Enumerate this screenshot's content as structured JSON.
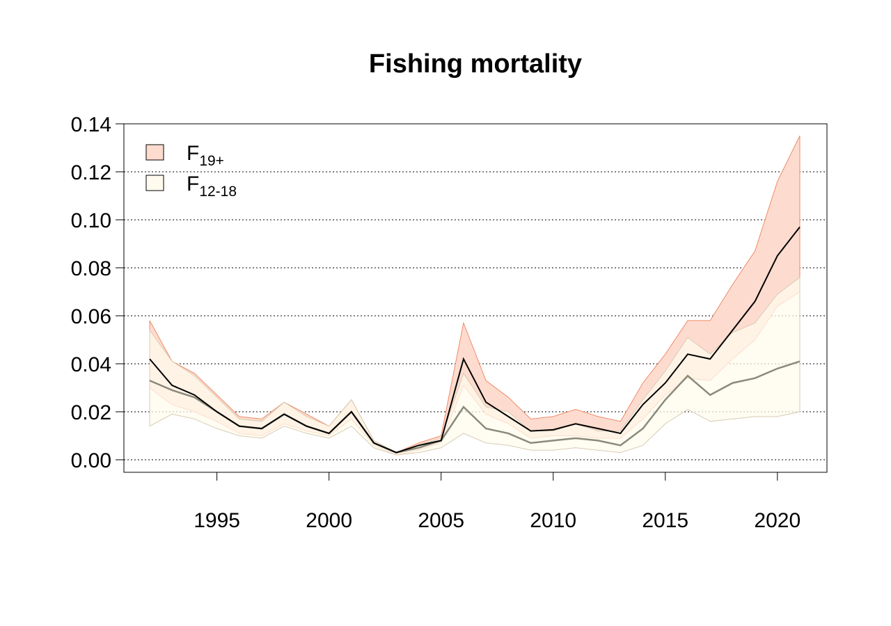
{
  "chart_data": {
    "type": "area",
    "title": "Fishing mortality",
    "xlabel": "",
    "ylabel": "",
    "xlim": [
      1992,
      2021
    ],
    "ylim": [
      0,
      0.14
    ],
    "grid": "horizontal dotted",
    "legend_position": "top-left",
    "x_ticks": [
      "1995",
      "2000",
      "2005",
      "2010",
      "2015",
      "2020"
    ],
    "y_ticks": [
      "0.00",
      "0.02",
      "0.04",
      "0.06",
      "0.08",
      "0.10",
      "0.12",
      "0.14"
    ],
    "x": [
      1992,
      1993,
      1994,
      1995,
      1996,
      1997,
      1998,
      1999,
      2000,
      2001,
      2002,
      2003,
      2004,
      2005,
      2006,
      2007,
      2008,
      2009,
      2010,
      2011,
      2012,
      2013,
      2014,
      2015,
      2016,
      2017,
      2018,
      2019,
      2020,
      2021
    ],
    "series": [
      {
        "name": "F",
        "subscript": "19+",
        "fill": "#fddccf",
        "border": "#f08a66",
        "line_color": "#000000",
        "values": [
          0.042,
          0.031,
          0.027,
          0.02,
          0.014,
          0.013,
          0.019,
          0.014,
          0.011,
          0.02,
          0.007,
          0.003,
          0.006,
          0.008,
          0.042,
          0.024,
          0.018,
          0.012,
          0.0125,
          0.015,
          0.013,
          0.011,
          0.023,
          0.032,
          0.044,
          0.042,
          0.054,
          0.066,
          0.085,
          0.097
        ],
        "upper": [
          0.058,
          0.041,
          0.036,
          0.027,
          0.018,
          0.017,
          0.024,
          0.019,
          0.014,
          0.025,
          0.008,
          0.003,
          0.007,
          0.01,
          0.057,
          0.033,
          0.026,
          0.017,
          0.018,
          0.021,
          0.018,
          0.016,
          0.032,
          0.044,
          0.058,
          0.058,
          0.073,
          0.087,
          0.116,
          0.135
        ],
        "lower": [
          0.03,
          0.023,
          0.02,
          0.016,
          0.011,
          0.01,
          0.015,
          0.012,
          0.01,
          0.017,
          0.006,
          0.002,
          0.004,
          0.007,
          0.031,
          0.019,
          0.015,
          0.009,
          0.01,
          0.01,
          0.009,
          0.009,
          0.017,
          0.027,
          0.034,
          0.033,
          0.042,
          0.05,
          0.064,
          0.07
        ]
      },
      {
        "name": "F",
        "subscript": "12-18",
        "fill": "#fffbee",
        "border": "#d6ccb4",
        "line_color": "#8a8a7a",
        "values": [
          0.033,
          0.029,
          0.026,
          0.02,
          0.014,
          0.013,
          0.019,
          0.014,
          0.011,
          0.02,
          0.007,
          0.003,
          0.005,
          0.008,
          0.022,
          0.013,
          0.011,
          0.007,
          0.008,
          0.009,
          0.008,
          0.006,
          0.013,
          0.025,
          0.035,
          0.027,
          0.032,
          0.034,
          0.038,
          0.041
        ],
        "upper": [
          0.054,
          0.041,
          0.035,
          0.026,
          0.017,
          0.016,
          0.024,
          0.018,
          0.014,
          0.025,
          0.008,
          0.003,
          0.006,
          0.009,
          0.036,
          0.022,
          0.02,
          0.012,
          0.012,
          0.015,
          0.012,
          0.012,
          0.025,
          0.037,
          0.051,
          0.044,
          0.053,
          0.057,
          0.069,
          0.076
        ],
        "lower": [
          0.014,
          0.019,
          0.017,
          0.013,
          0.01,
          0.009,
          0.014,
          0.011,
          0.009,
          0.014,
          0.005,
          0.002,
          0.003,
          0.005,
          0.011,
          0.007,
          0.006,
          0.004,
          0.004,
          0.005,
          0.004,
          0.003,
          0.006,
          0.015,
          0.021,
          0.016,
          0.017,
          0.018,
          0.018,
          0.02
        ]
      }
    ]
  }
}
